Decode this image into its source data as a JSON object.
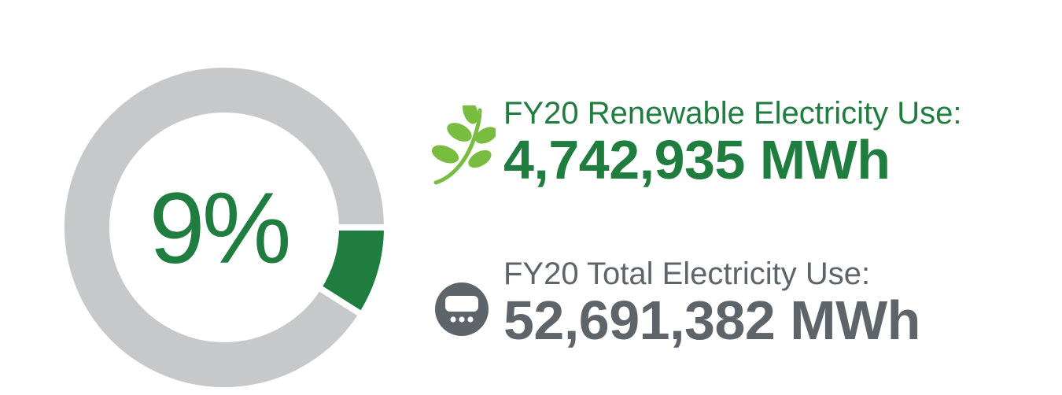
{
  "colors": {
    "green": "#1f7d3f",
    "gray": "#c7c8ca",
    "dark_gray": "#5d656b",
    "leaf_green": "#78bd3f"
  },
  "icons": {
    "renewable": "leaf-sprout-icon",
    "total": "electric-meter-icon"
  },
  "chart_data": {
    "type": "pie",
    "center_label": "9%",
    "slices": [
      {
        "value": 9
      },
      {
        "value": 91
      }
    ]
  },
  "stats": {
    "renewable": {
      "label": "FY20 Renewable Electricity Use:",
      "value": "4,742,935 MWh"
    },
    "total": {
      "label": "FY20 Total Electricity Use:",
      "value": "52,691,382 MWh"
    }
  }
}
